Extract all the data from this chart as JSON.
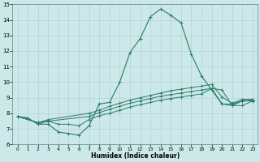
{
  "xlabel": "Humidex (Indice chaleur)",
  "bg_color": "#cde8e8",
  "grid_color": "#aecece",
  "line_color": "#2a7a6a",
  "xlim": [
    -0.5,
    23.5
  ],
  "ylim": [
    6,
    15
  ],
  "xticks": [
    0,
    1,
    2,
    3,
    4,
    5,
    6,
    7,
    8,
    9,
    10,
    11,
    12,
    13,
    14,
    15,
    16,
    17,
    18,
    19,
    20,
    21,
    22,
    23
  ],
  "yticks": [
    6,
    7,
    8,
    9,
    10,
    11,
    12,
    13,
    14,
    15
  ],
  "line1_x": [
    0,
    1,
    2,
    3,
    4,
    5,
    6,
    7,
    8,
    9,
    10,
    11,
    12,
    13,
    14,
    15,
    16,
    17,
    18,
    19,
    20,
    21,
    22,
    23
  ],
  "line1_y": [
    7.8,
    7.7,
    7.3,
    7.3,
    6.8,
    6.7,
    6.6,
    7.2,
    8.6,
    8.7,
    10.0,
    11.9,
    12.8,
    14.2,
    14.7,
    14.3,
    13.8,
    11.8,
    10.4,
    9.5,
    8.6,
    8.5,
    8.8,
    8.8
  ],
  "line2_x": [
    0,
    1,
    2,
    3,
    4,
    5,
    6,
    7,
    8,
    9,
    10,
    11,
    12,
    13,
    14,
    15,
    16,
    17,
    18,
    19,
    20,
    21,
    22,
    23
  ],
  "line2_y": [
    7.8,
    7.7,
    7.3,
    7.5,
    7.3,
    7.3,
    7.2,
    7.6,
    7.85,
    8.0,
    8.2,
    8.4,
    8.55,
    8.7,
    8.85,
    8.95,
    9.05,
    9.15,
    9.25,
    9.6,
    9.5,
    8.5,
    8.5,
    8.8
  ],
  "line3_x": [
    0,
    2,
    3,
    7,
    8,
    9,
    10,
    11,
    12,
    13,
    14,
    15,
    16,
    17,
    18,
    19,
    20,
    21,
    22,
    23
  ],
  "line3_y": [
    7.8,
    7.4,
    7.5,
    7.8,
    8.05,
    8.25,
    8.45,
    8.65,
    8.8,
    8.95,
    9.1,
    9.2,
    9.3,
    9.4,
    9.5,
    9.6,
    8.6,
    8.6,
    8.8,
    8.85
  ],
  "line4_x": [
    0,
    2,
    3,
    7,
    8,
    9,
    10,
    11,
    12,
    13,
    14,
    15,
    16,
    17,
    18,
    19,
    20,
    21,
    22,
    23
  ],
  "line4_y": [
    7.8,
    7.4,
    7.6,
    8.0,
    8.2,
    8.45,
    8.65,
    8.85,
    9.0,
    9.15,
    9.3,
    9.45,
    9.55,
    9.65,
    9.75,
    9.85,
    9.05,
    8.65,
    8.9,
    8.9
  ]
}
